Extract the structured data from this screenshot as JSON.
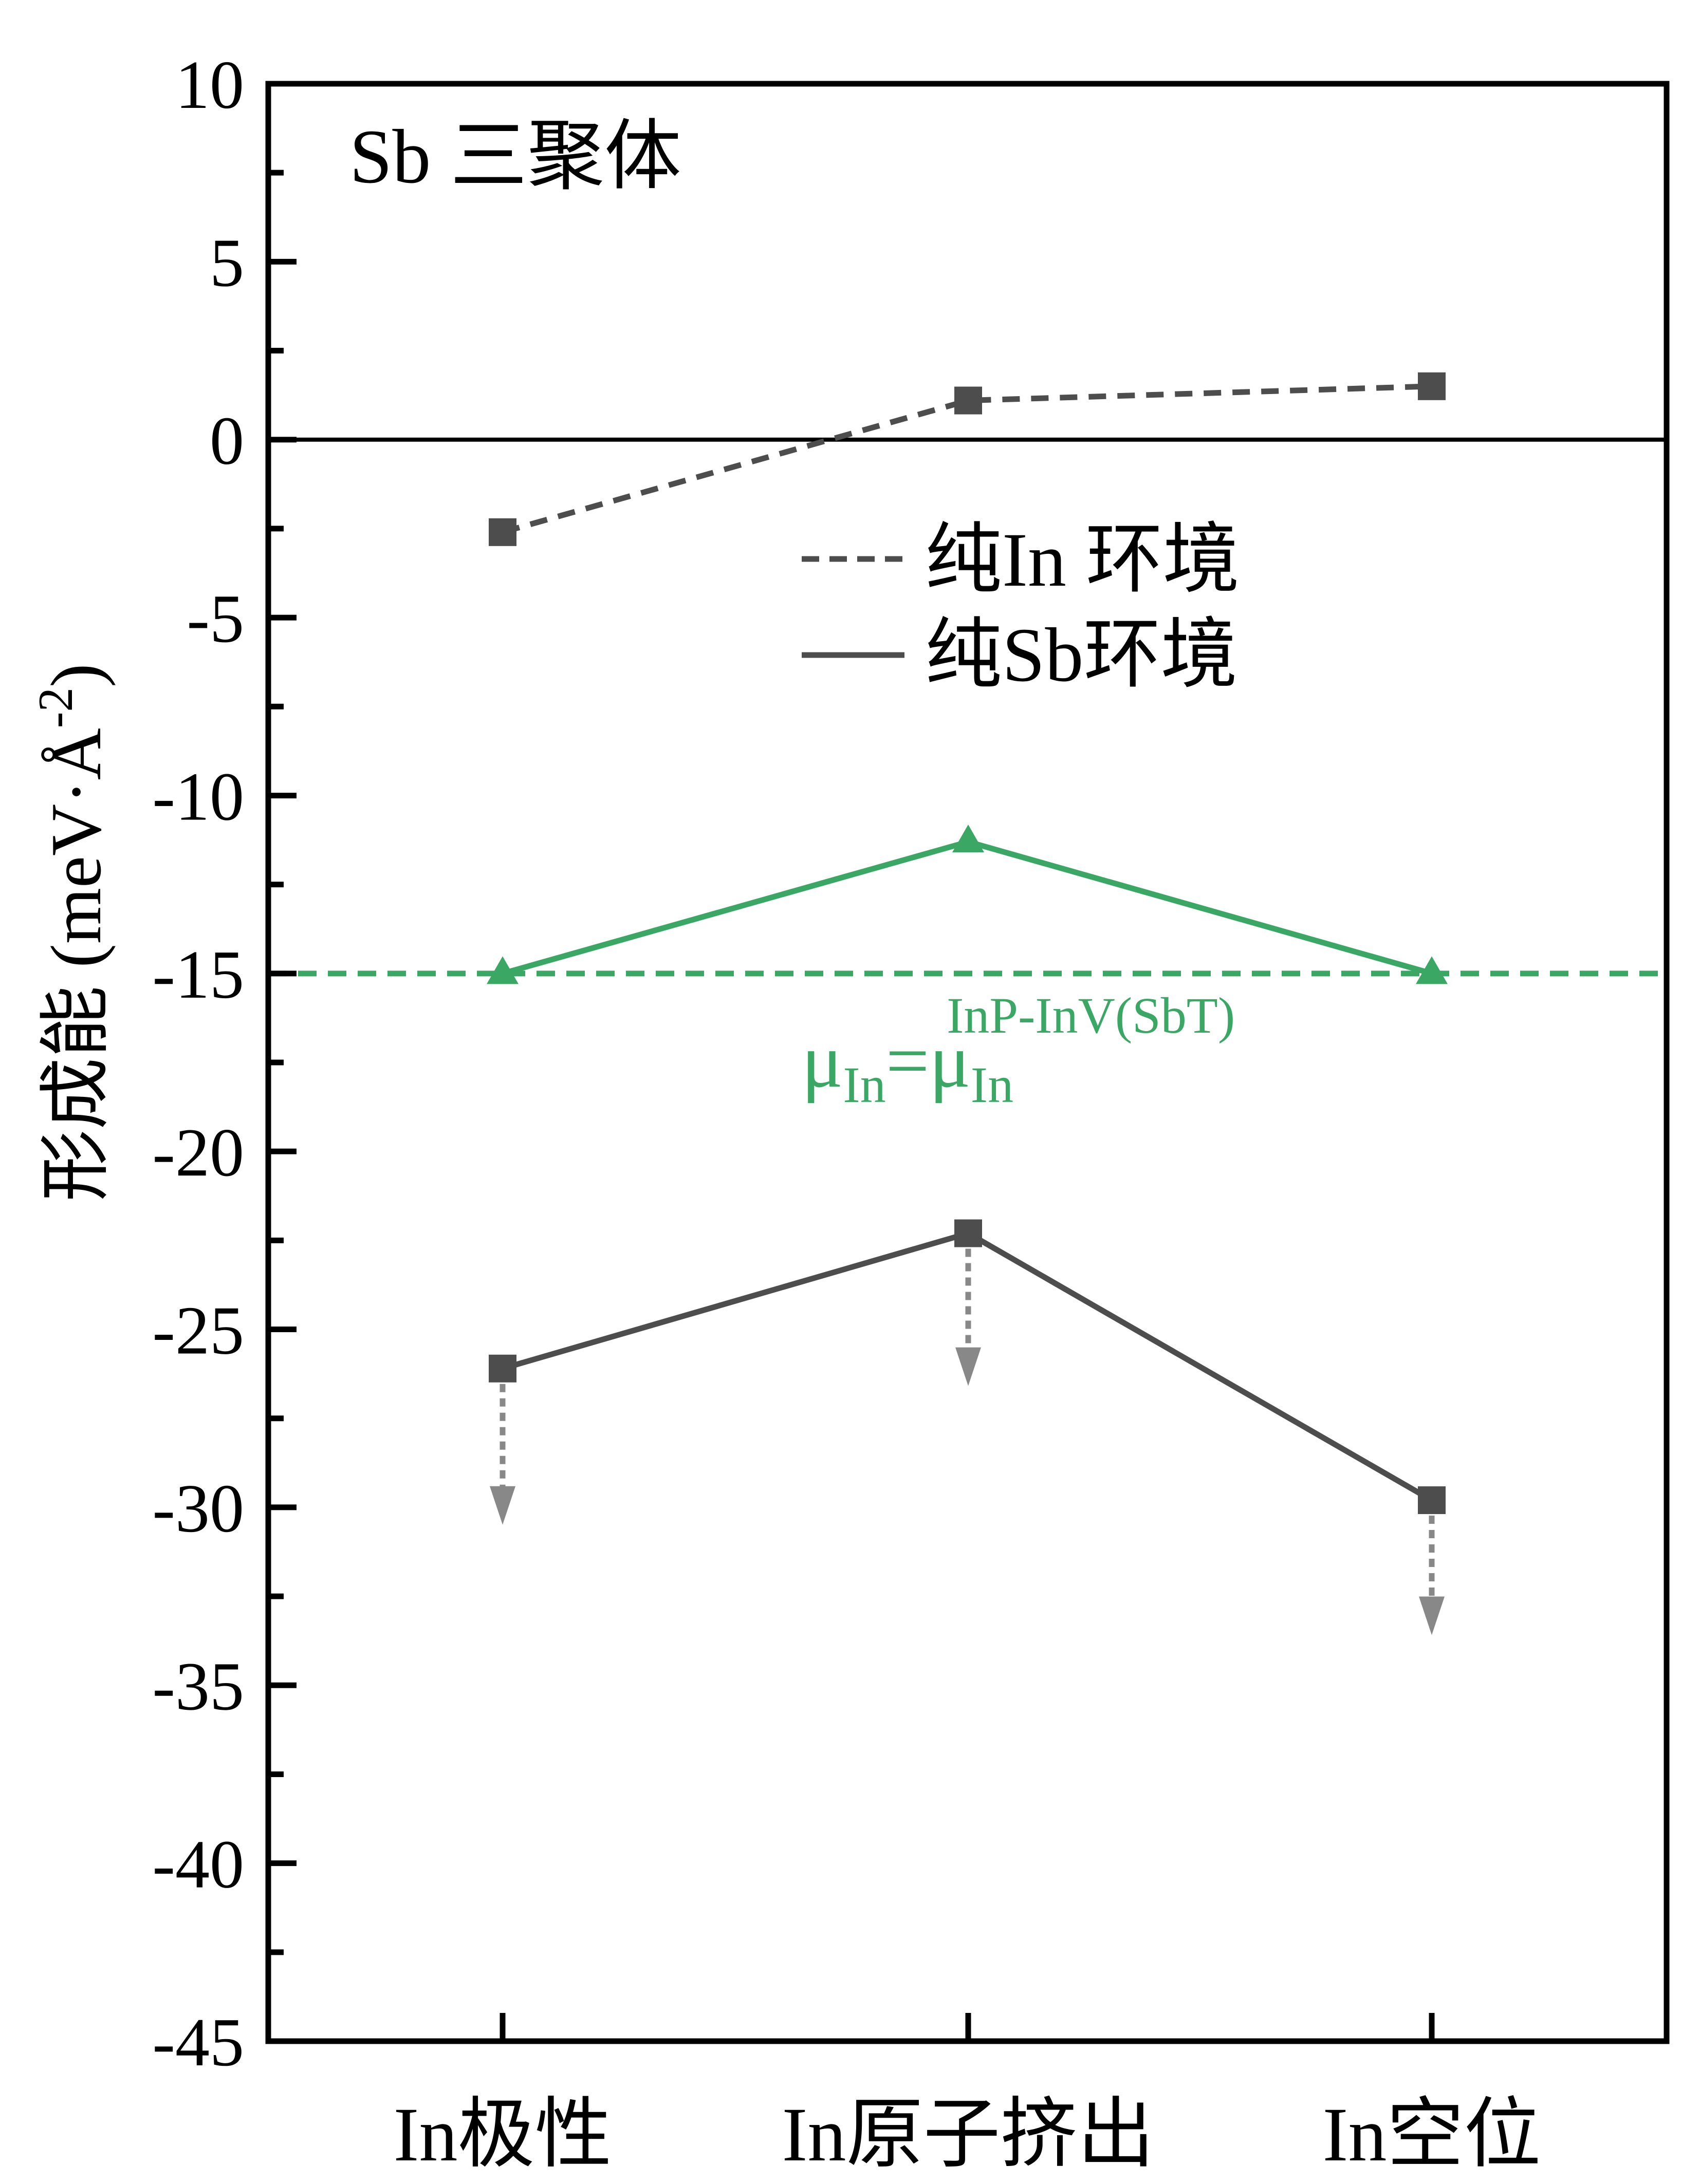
{
  "chart_data": {
    "type": "line",
    "panel_label": "Sb 三聚体",
    "ylabel": "形成能 (meV·Å",
    "ylabel_sup": "-2",
    "ylabel_close": ")",
    "categories": [
      "In极性",
      "In原子挤出",
      "In空位"
    ],
    "ylim": [
      -45,
      10
    ],
    "yticks": [
      10,
      5,
      0,
      -5,
      -10,
      -15,
      -20,
      -25,
      -30,
      -35,
      -40,
      -45
    ],
    "ytick_labels": [
      "10",
      "5",
      "0",
      "-5",
      "-10",
      "-15",
      "-20",
      "-25",
      "-30",
      "-35",
      "-40",
      "-45"
    ],
    "zero_line": 0,
    "series": [
      {
        "name": "纯In 环境",
        "values": [
          -2.6,
          1.1,
          1.5
        ],
        "color": "#4d4d4d",
        "style": "dashed",
        "marker": "square"
      },
      {
        "name": "纯Sb环境",
        "values": [
          -26.1,
          -22.3,
          -29.8
        ],
        "color": "#4d4d4d",
        "style": "solid",
        "marker": "square"
      },
      {
        "name": "",
        "values": [
          -15.0,
          -11.3,
          -15.0
        ],
        "color": "#3aa864",
        "style": "solid",
        "marker": "triangle"
      }
    ],
    "reference_line": {
      "value": -15.0,
      "color": "#3aa864",
      "style": "dashed",
      "label": {
        "mu": "μ",
        "sub1": "In",
        "eq": "=",
        "mu2": "μ",
        "sub2": "In",
        "sup2": "InP-InV(SbT)"
      }
    },
    "downward_arrows": [
      {
        "category": "In极性",
        "from": -26.1,
        "to": -30.2
      },
      {
        "category": "In原子挤出",
        "from": -22.3,
        "to": -26.3
      },
      {
        "category": "In空位",
        "from": -29.8,
        "to": -33.3
      }
    ],
    "legend_position": "center-top",
    "arrow_color": "#888888",
    "axis_color": "#000000"
  }
}
